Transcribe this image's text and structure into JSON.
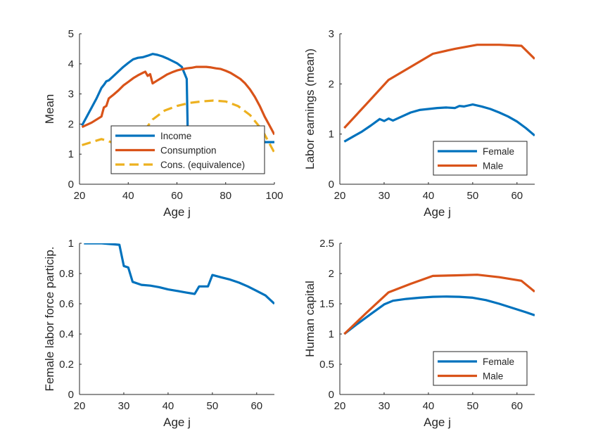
{
  "chart_data": [
    {
      "type": "line",
      "xlabel": "Age j",
      "ylabel": "Mean",
      "xlim": [
        20,
        100
      ],
      "ylim": [
        0,
        5
      ],
      "xticks": [
        20,
        40,
        60,
        80,
        100
      ],
      "yticks": [
        0,
        1,
        2,
        3,
        4,
        5
      ],
      "grid": false,
      "legend": "bottom-right",
      "series": [
        {
          "name": "Income",
          "color": "#0072BD",
          "style": "solid",
          "x": [
            21,
            23,
            25,
            27,
            29,
            30,
            31,
            32,
            34,
            36,
            38,
            40,
            42,
            44,
            46,
            48,
            50,
            52,
            54,
            56,
            58,
            60,
            62,
            63,
            64,
            64.5,
            100
          ],
          "y": [
            1.95,
            2.25,
            2.55,
            2.85,
            3.2,
            3.3,
            3.42,
            3.45,
            3.6,
            3.75,
            3.9,
            4.03,
            4.15,
            4.2,
            4.22,
            4.27,
            4.33,
            4.3,
            4.25,
            4.18,
            4.1,
            4.02,
            3.9,
            3.7,
            3.5,
            1.4,
            1.4
          ]
        },
        {
          "name": "Consumption",
          "color": "#D95319",
          "style": "solid",
          "x": [
            21,
            25,
            29,
            30,
            31,
            32,
            34,
            36,
            38,
            40,
            42,
            44,
            46,
            47,
            48,
            49,
            50,
            52,
            54,
            56,
            58,
            60,
            62,
            64,
            66,
            68,
            70,
            72,
            74,
            76,
            78,
            80,
            82,
            84,
            86,
            88,
            90,
            92,
            94,
            96,
            98,
            100
          ],
          "y": [
            1.9,
            2.05,
            2.25,
            2.55,
            2.6,
            2.85,
            2.98,
            3.12,
            3.28,
            3.4,
            3.52,
            3.62,
            3.7,
            3.74,
            3.6,
            3.66,
            3.35,
            3.45,
            3.55,
            3.65,
            3.72,
            3.78,
            3.82,
            3.85,
            3.87,
            3.9,
            3.9,
            3.9,
            3.88,
            3.85,
            3.83,
            3.77,
            3.7,
            3.6,
            3.5,
            3.35,
            3.15,
            2.9,
            2.6,
            2.25,
            1.95,
            1.65
          ]
        },
        {
          "name": "Cons. (equivalence)",
          "color": "#EDB120",
          "style": "dashed",
          "x": [
            21,
            25,
            29,
            31,
            33,
            35,
            37,
            40,
            45,
            50,
            55,
            60,
            65,
            70,
            75,
            80,
            85,
            90,
            95,
            100
          ],
          "y": [
            1.3,
            1.4,
            1.5,
            1.45,
            1.4,
            1.3,
            1.25,
            1.3,
            1.6,
            2.15,
            2.45,
            2.6,
            2.7,
            2.75,
            2.78,
            2.75,
            2.6,
            2.3,
            1.8,
            1.05
          ]
        }
      ]
    },
    {
      "type": "line",
      "xlabel": "Age j",
      "ylabel": "Labor earnings (mean)",
      "xlim": [
        20,
        64
      ],
      "ylim": [
        0,
        3
      ],
      "xticks": [
        20,
        30,
        40,
        50,
        60
      ],
      "yticks": [
        0,
        1,
        2,
        3
      ],
      "grid": false,
      "legend": "bottom-right",
      "series": [
        {
          "name": "Female",
          "color": "#0072BD",
          "style": "solid",
          "x": [
            21,
            23,
            25,
            27,
            29,
            30,
            31,
            32,
            34,
            36,
            38,
            40,
            42,
            44,
            46,
            47,
            48,
            49,
            50,
            52,
            54,
            56,
            58,
            60,
            62,
            64
          ],
          "y": [
            0.85,
            0.95,
            1.05,
            1.17,
            1.3,
            1.26,
            1.31,
            1.27,
            1.35,
            1.43,
            1.48,
            1.5,
            1.52,
            1.53,
            1.52,
            1.56,
            1.55,
            1.57,
            1.59,
            1.55,
            1.5,
            1.43,
            1.35,
            1.25,
            1.12,
            0.97
          ]
        },
        {
          "name": "Male",
          "color": "#D95319",
          "style": "solid",
          "x": [
            21,
            26,
            31,
            36,
            41,
            46,
            51,
            56,
            61,
            64
          ],
          "y": [
            1.12,
            1.6,
            2.08,
            2.34,
            2.6,
            2.7,
            2.78,
            2.78,
            2.76,
            2.5
          ]
        }
      ]
    },
    {
      "type": "line",
      "xlabel": "Age j",
      "ylabel": "Female labor force particip.",
      "xlim": [
        20,
        64
      ],
      "ylim": [
        0,
        1
      ],
      "xticks": [
        20,
        30,
        40,
        50,
        60
      ],
      "yticks": [
        0,
        0.2,
        0.4,
        0.6,
        0.8,
        1
      ],
      "grid": false,
      "series": [
        {
          "color": "#0072BD",
          "style": "solid",
          "x": [
            21,
            25,
            29,
            30,
            31,
            32,
            34,
            36,
            38,
            40,
            42,
            44,
            46,
            47,
            48,
            49,
            50,
            52,
            54,
            56,
            58,
            60,
            62,
            64
          ],
          "y": [
            1.0,
            1.0,
            0.99,
            0.85,
            0.84,
            0.745,
            0.725,
            0.72,
            0.71,
            0.695,
            0.685,
            0.675,
            0.665,
            0.715,
            0.715,
            0.715,
            0.79,
            0.775,
            0.76,
            0.74,
            0.715,
            0.685,
            0.655,
            0.6
          ]
        }
      ]
    },
    {
      "type": "line",
      "xlabel": "Age j",
      "ylabel": "Human capital",
      "xlim": [
        20,
        64
      ],
      "ylim": [
        0,
        2.5
      ],
      "xticks": [
        20,
        30,
        40,
        50,
        60
      ],
      "yticks": [
        0,
        0.5,
        1,
        1.5,
        2,
        2.5
      ],
      "grid": false,
      "legend": "bottom-right",
      "series": [
        {
          "name": "Female",
          "color": "#0072BD",
          "style": "solid",
          "x": [
            21,
            24,
            27,
            30,
            32,
            35,
            38,
            41,
            44,
            47,
            50,
            53,
            56,
            59,
            62,
            64
          ],
          "y": [
            1.0,
            1.17,
            1.33,
            1.49,
            1.55,
            1.58,
            1.6,
            1.615,
            1.62,
            1.615,
            1.6,
            1.56,
            1.5,
            1.43,
            1.36,
            1.31
          ]
        },
        {
          "name": "Male",
          "color": "#D95319",
          "style": "solid",
          "x": [
            21,
            26,
            31,
            36,
            41,
            46,
            51,
            56,
            61,
            64
          ],
          "y": [
            1.0,
            1.35,
            1.69,
            1.83,
            1.96,
            1.97,
            1.98,
            1.94,
            1.88,
            1.7
          ]
        }
      ]
    }
  ]
}
